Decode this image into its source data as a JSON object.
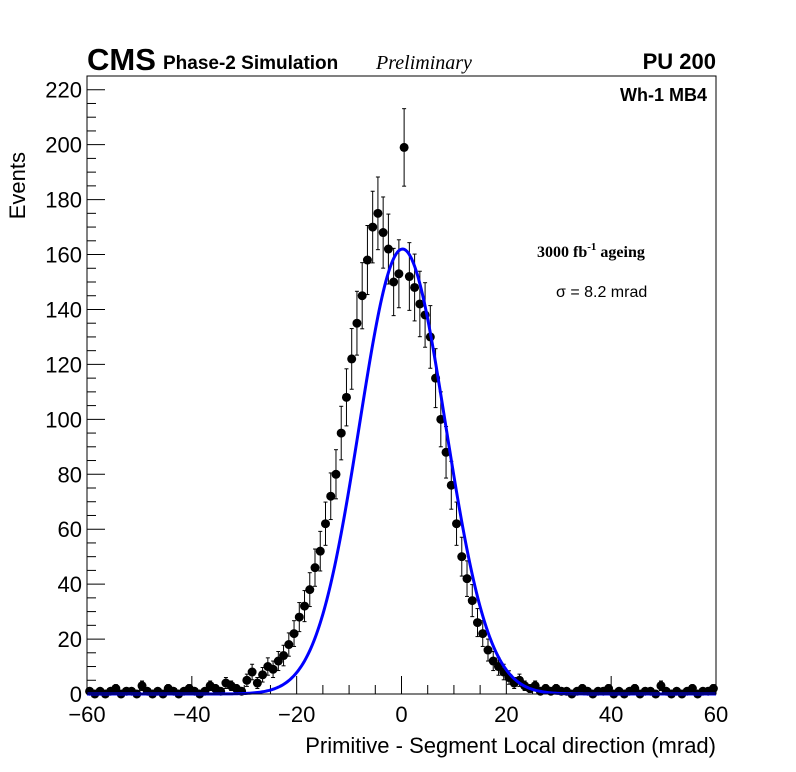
{
  "chart_data": {
    "type": "scatter",
    "title": "",
    "experiment": "CMS",
    "subtitle": "Phase-2 Simulation",
    "status": "Preliminary",
    "pileup": "PU 200",
    "chamber": "Wh-1 MB4",
    "ageing_prefix": "3000 fb",
    "ageing_exp": "-1",
    "ageing_suffix": " ageing",
    "sigma_text": "σ = 8.2 mrad",
    "xlabel": "Primitive - Segment Local direction (mrad)",
    "ylabel": "Events",
    "xlim": [
      -60,
      60
    ],
    "ylim": [
      0,
      225
    ],
    "xticks": [
      -60,
      -40,
      -20,
      0,
      20,
      40,
      60
    ],
    "xtick_labels": [
      "−60",
      "−40",
      "−20",
      "0",
      "20",
      "40",
      "60"
    ],
    "yticks": [
      0,
      20,
      40,
      60,
      80,
      100,
      120,
      140,
      160,
      180,
      200,
      220
    ],
    "ytick_labels": [
      "0",
      "20",
      "40",
      "60",
      "80",
      "100",
      "120",
      "140",
      "160",
      "180",
      "200",
      "220"
    ],
    "series": [
      {
        "name": "Simulation",
        "style": "markers-with-errors",
        "x": [
          -59.5,
          -58.5,
          -57.5,
          -56.5,
          -55.5,
          -54.5,
          -53.5,
          -52.5,
          -51.5,
          -50.5,
          -49.5,
          -48.5,
          -47.5,
          -46.5,
          -45.5,
          -44.5,
          -43.5,
          -42.5,
          -41.5,
          -40.5,
          -39.5,
          -38.5,
          -37.5,
          -36.5,
          -35.5,
          -34.5,
          -33.5,
          -32.5,
          -31.5,
          -30.5,
          -29.5,
          -28.5,
          -27.5,
          -26.5,
          -25.5,
          -24.5,
          -23.5,
          -22.5,
          -21.5,
          -20.5,
          -19.5,
          -18.5,
          -17.5,
          -16.5,
          -15.5,
          -14.5,
          -13.5,
          -12.5,
          -11.5,
          -10.5,
          -9.5,
          -8.5,
          -7.5,
          -6.5,
          -5.5,
          -4.5,
          -3.5,
          -2.5,
          -1.5,
          -0.5,
          0.5,
          1.5,
          2.5,
          3.5,
          4.5,
          5.5,
          6.5,
          7.5,
          8.5,
          9.5,
          10.5,
          11.5,
          12.5,
          13.5,
          14.5,
          15.5,
          16.5,
          17.5,
          18.5,
          19.5,
          20.5,
          21.5,
          22.5,
          23.5,
          24.5,
          25.5,
          26.5,
          27.5,
          28.5,
          29.5,
          30.5,
          31.5,
          32.5,
          33.5,
          34.5,
          35.5,
          36.5,
          37.5,
          38.5,
          39.5,
          40.5,
          41.5,
          42.5,
          43.5,
          44.5,
          45.5,
          46.5,
          47.5,
          48.5,
          49.5,
          50.5,
          51.5,
          52.5,
          53.5,
          54.5,
          55.5,
          56.5,
          57.5,
          58.5,
          59.5
        ],
        "y": [
          1,
          0,
          1,
          0,
          1,
          2,
          0,
          1,
          1,
          0,
          3,
          1,
          0,
          1,
          0,
          2,
          1,
          0,
          1,
          2,
          1,
          0,
          1,
          3,
          2,
          1,
          4,
          3,
          2,
          1,
          5,
          8,
          4,
          7,
          10,
          9,
          12,
          14,
          18,
          22,
          28,
          32,
          38,
          46,
          52,
          62,
          72,
          80,
          95,
          108,
          122,
          135,
          145,
          158,
          170,
          175,
          168,
          162,
          150,
          153,
          199,
          152,
          148,
          142,
          138,
          130,
          115,
          100,
          88,
          76,
          62,
          50,
          42,
          34,
          26,
          22,
          16,
          12,
          10,
          8,
          6,
          4,
          5,
          3,
          2,
          3,
          1,
          2,
          1,
          2,
          1,
          1,
          0,
          1,
          2,
          1,
          0,
          1,
          1,
          2,
          0,
          1,
          0,
          1,
          2,
          0,
          1,
          1,
          0,
          3,
          1,
          0,
          1,
          0,
          1,
          2,
          0,
          1,
          1,
          2
        ]
      },
      {
        "name": "Gaussian fit",
        "style": "line",
        "color": "#0000ff",
        "mean": 0.2,
        "sigma": 8.2,
        "amplitude": 162
      }
    ]
  }
}
